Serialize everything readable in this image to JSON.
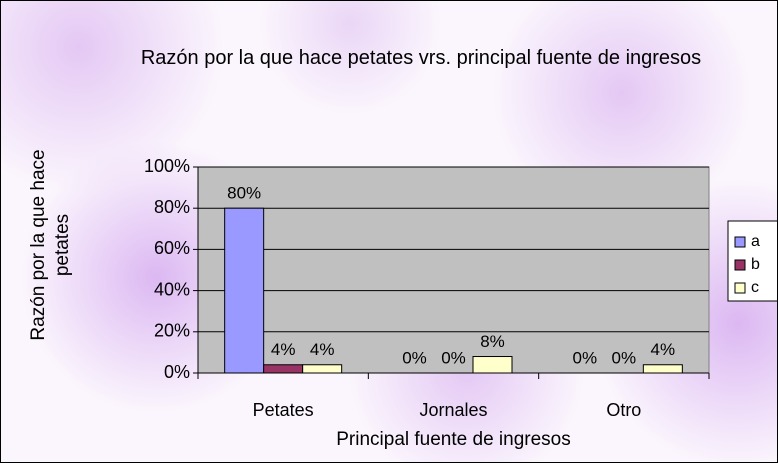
{
  "chart_data": {
    "type": "bar",
    "title": "Razón por la que hace petates vrs. principal fuente de ingresos",
    "xlabel": "Principal fuente de ingresos",
    "ylabel": "Razón por la que hace petates",
    "categories": [
      "Petates",
      "Jornales",
      "Otro"
    ],
    "series": [
      {
        "name": "a",
        "color": "#9999ff",
        "values": [
          80,
          0,
          0
        ],
        "value_labels": [
          "80%",
          "0%",
          "0%"
        ]
      },
      {
        "name": "b",
        "color": "#993366",
        "values": [
          4,
          0,
          0
        ],
        "value_labels": [
          "4%",
          "0%",
          "0%"
        ]
      },
      {
        "name": "c",
        "color": "#ffffcc",
        "values": [
          4,
          8,
          4
        ],
        "value_labels": [
          "4%",
          "8%",
          "4%"
        ]
      }
    ],
    "ylim": [
      0,
      100
    ],
    "yticks": [
      {
        "value": 0,
        "label": "0%"
      },
      {
        "value": 20,
        "label": "20%"
      },
      {
        "value": 40,
        "label": "40%"
      },
      {
        "value": 60,
        "label": "60%"
      },
      {
        "value": 80,
        "label": "80%"
      },
      {
        "value": 100,
        "label": "100%"
      }
    ],
    "grid": true,
    "legend": "right",
    "plot_background": "#c0c0c0"
  }
}
